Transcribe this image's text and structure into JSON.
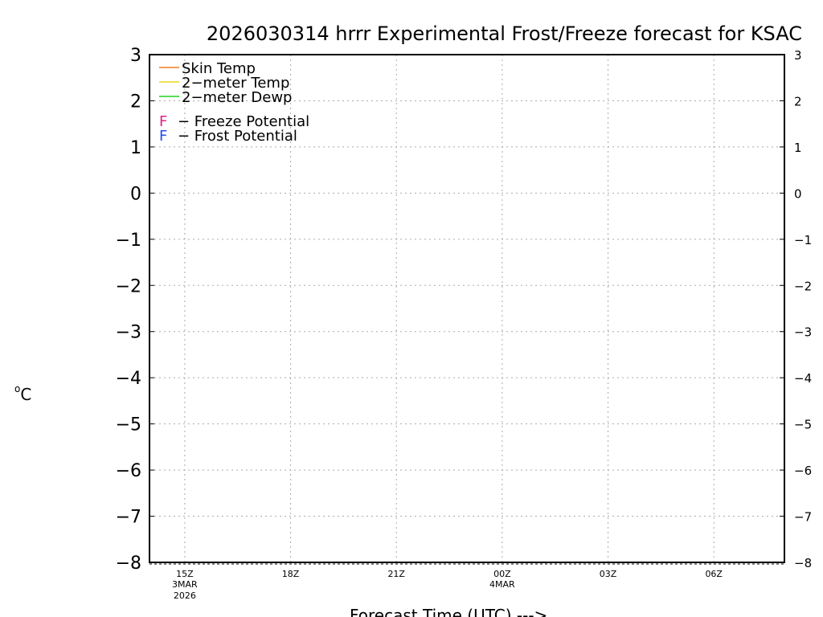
{
  "chart_data": {
    "type": "line",
    "title": "2026030314 hrrr Experimental Frost/Freeze forecast for KSAC",
    "xlabel": "Forecast Time (UTC) --->",
    "ylabel": "°C",
    "ylabel_parts": {
      "degree": "o",
      "unit": "C"
    },
    "ylim": [
      -8,
      3
    ],
    "xlim_hours_from_15Z": [
      -1,
      17
    ],
    "yticks": [
      3,
      2,
      1,
      0,
      -1,
      -2,
      -3,
      -4,
      -5,
      -6,
      -7,
      -8
    ],
    "xticks": [
      {
        "hour": 0,
        "label": "15Z",
        "sub1": "3MAR",
        "sub2": "2026"
      },
      {
        "hour": 3,
        "label": "18Z"
      },
      {
        "hour": 6,
        "label": "21Z"
      },
      {
        "hour": 9,
        "label": "00Z",
        "sub1": "4MAR"
      },
      {
        "hour": 12,
        "label": "03Z"
      },
      {
        "hour": 15,
        "label": "06Z"
      }
    ],
    "grid": true,
    "legend_placement": "top-left",
    "legend": [
      {
        "name": "Skin Temp",
        "color": "#f07f20"
      },
      {
        "name": "2-meter Temp",
        "color": "#e8d820"
      },
      {
        "name": "2-meter Dewp",
        "color": "#20d020"
      }
    ],
    "markers": [
      {
        "symbol": "F",
        "name": "- Freeze Potential",
        "color": "#e0207f"
      },
      {
        "symbol": "F",
        "name": "- Frost Potential",
        "color": "#2050f0"
      }
    ],
    "series": []
  }
}
